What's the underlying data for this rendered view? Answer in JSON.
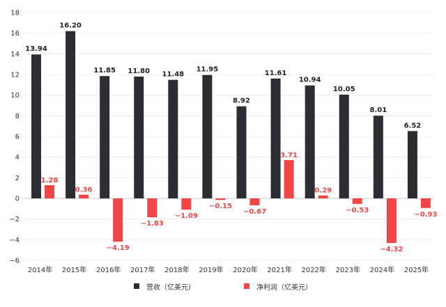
{
  "chart_data": {
    "type": "bar",
    "categories": [
      "2014年",
      "2015年",
      "2016年",
      "2017年",
      "2018年",
      "2019年",
      "2020年",
      "2021年",
      "2022年",
      "2023年",
      "2024年",
      "2025年"
    ],
    "series": [
      {
        "name": "营收（亿美元）",
        "values": [
          13.94,
          16.2,
          11.85,
          11.8,
          11.48,
          11.95,
          8.92,
          11.61,
          10.94,
          10.05,
          8.01,
          6.52
        ],
        "labels": [
          "13.94",
          "16.20",
          "11.85",
          "11.80",
          "11.48",
          "11.95",
          "8.92",
          "11.61",
          "10.94",
          "10.05",
          "8.01",
          "6.52"
        ],
        "color": "#2a2d33"
      },
      {
        "name": "净利润（亿美元）",
        "values": [
          1.28,
          0.36,
          -4.19,
          -1.83,
          -1.09,
          -0.15,
          -0.67,
          3.71,
          0.29,
          -0.53,
          -4.32,
          -0.93
        ],
        "labels": [
          "1.28",
          "0.36",
          "−4.19",
          "−1.83",
          "−1.09",
          "−0.15",
          "−0.67",
          "3.71",
          "0.29",
          "−0.53",
          "−4.32",
          "−0.93"
        ],
        "color": "#f24646"
      }
    ],
    "ylim": [
      -6,
      18
    ],
    "yticks": [
      -6,
      -4,
      -2,
      0,
      2,
      4,
      6,
      8,
      10,
      12,
      14,
      16,
      18
    ],
    "ytick_labels": [
      "−6",
      "−4",
      "−2",
      "0",
      "2",
      "4",
      "6",
      "8",
      "10",
      "12",
      "14",
      "16",
      "18"
    ],
    "grid": true,
    "legend_position": "bottom-center"
  }
}
